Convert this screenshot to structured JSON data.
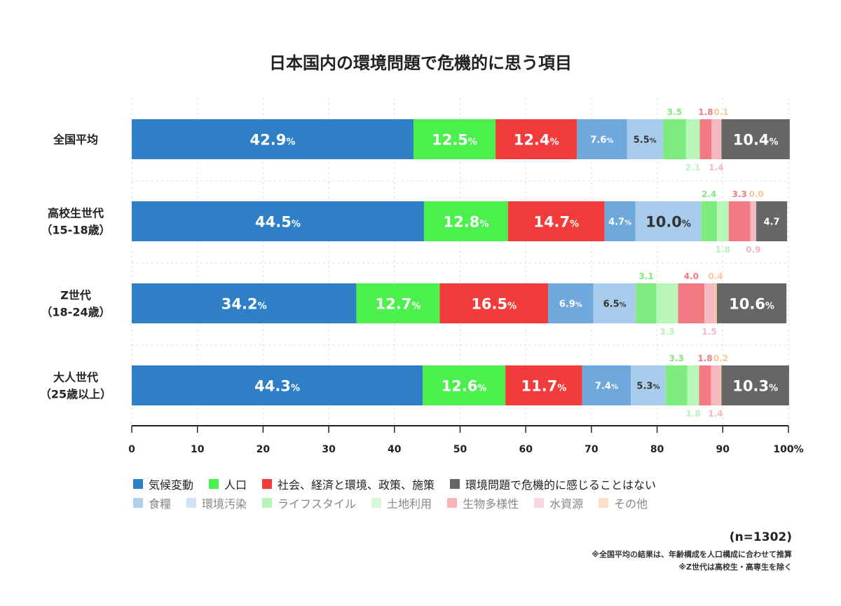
{
  "chart_data": {
    "type": "bar",
    "orientation": "horizontal",
    "stacked": true,
    "title": "日本国内の環境問題で危機的に思う項目",
    "categories": [
      [
        "全国平均"
      ],
      [
        "高校生世代",
        "（15-18歳）"
      ],
      [
        "Z世代",
        "（18-24歳）"
      ],
      [
        "大人世代",
        "（25歳以上）"
      ]
    ],
    "series": [
      {
        "name": "気候変動",
        "color": "#2E7FC6",
        "values": [
          42.9,
          44.5,
          34.2,
          44.3
        ],
        "labels": [
          "42.9%",
          "44.5%",
          "34.2%",
          "44.3%"
        ]
      },
      {
        "name": "人口",
        "color": "#4CF04C",
        "values": [
          12.5,
          12.8,
          12.7,
          12.6
        ],
        "labels": [
          "12.5%",
          "12.8%",
          "12.7%",
          "12.6%"
        ]
      },
      {
        "name": "社会、経済と環境、政策、施策",
        "color": "#F23B3B",
        "values": [
          12.4,
          14.7,
          16.5,
          11.7
        ],
        "labels": [
          "12.4%",
          "14.7%",
          "16.5%",
          "11.7%"
        ]
      },
      {
        "name": "食糧",
        "color": "#6FA8DC",
        "values": [
          7.6,
          4.7,
          6.9,
          7.4
        ],
        "labels": [
          "7.6%",
          "4.7%",
          "6.9%",
          "7.4%"
        ]
      },
      {
        "name": "環境汚染",
        "color": "#A8CDEC",
        "values": [
          5.5,
          10.0,
          6.5,
          5.3
        ],
        "labels": [
          "5.5%",
          "10.0%",
          "6.5%",
          "5.3%"
        ]
      },
      {
        "name": "ライフスタイル",
        "color": "#7EEB7E",
        "values": [
          3.5,
          2.4,
          3.1,
          3.3
        ],
        "labels": [
          "3.5",
          "2.4",
          "3.1",
          "3.3"
        ]
      },
      {
        "name": "土地利用",
        "color": "#B8F5B8",
        "values": [
          2.1,
          1.8,
          3.3,
          1.8
        ],
        "labels": [
          "2.1",
          "1.8",
          "3.3",
          "1.8"
        ]
      },
      {
        "name": "生物多様性",
        "color": "#F27A82",
        "values": [
          1.8,
          3.3,
          4.0,
          1.8
        ],
        "labels": [
          "1.8",
          "3.3",
          "4.0",
          "1.8"
        ]
      },
      {
        "name": "水資源",
        "color": "#F5B8C0",
        "values": [
          1.4,
          0.9,
          1.5,
          1.4
        ],
        "labels": [
          "1.4",
          "0.9",
          "1.5",
          "1.4"
        ]
      },
      {
        "name": "その他",
        "color": "#F8C89A",
        "values": [
          0.1,
          0.0,
          0.4,
          0.2
        ],
        "labels": [
          "0.1",
          "0.0",
          "0.4",
          "0.2"
        ]
      },
      {
        "name": "環境問題で危機的に感じることはない",
        "color": "#666666",
        "values": [
          10.4,
          4.7,
          10.6,
          10.3
        ],
        "labels": [
          "10.4%",
          "4.7",
          "10.6%",
          "10.3%"
        ]
      }
    ],
    "xlim": [
      0,
      100
    ],
    "x_ticks": [
      "0",
      "10",
      "20",
      "30",
      "40",
      "50",
      "60",
      "70",
      "80",
      "90",
      "100%"
    ],
    "grid": true
  },
  "legend": {
    "row1": [
      {
        "label": "気候変動",
        "color": "#2E7FC6"
      },
      {
        "label": "人口",
        "color": "#4CF04C"
      },
      {
        "label": "社会、経済と環境、政策、施策",
        "color": "#F23B3B"
      },
      {
        "label": "環境問題で危機的に感じることはない",
        "color": "#666666"
      }
    ],
    "row2": [
      {
        "label": "食糧",
        "color": "#6FA8DC"
      },
      {
        "label": "環境汚染",
        "color": "#A8CDEC"
      },
      {
        "label": "ライフスタイル",
        "color": "#7EEB7E"
      },
      {
        "label": "土地利用",
        "color": "#B8F5B8"
      },
      {
        "label": "生物多様性",
        "color": "#F27A82"
      },
      {
        "label": "水資源",
        "color": "#F5B8C0"
      },
      {
        "label": "その他",
        "color": "#F8C89A"
      }
    ]
  },
  "n_label": "(n=1302)",
  "footnotes": [
    "※全国平均の結果は、年齢構成を人口構成に合わせて推算",
    "※Z世代は高校生・高専生を除く"
  ]
}
